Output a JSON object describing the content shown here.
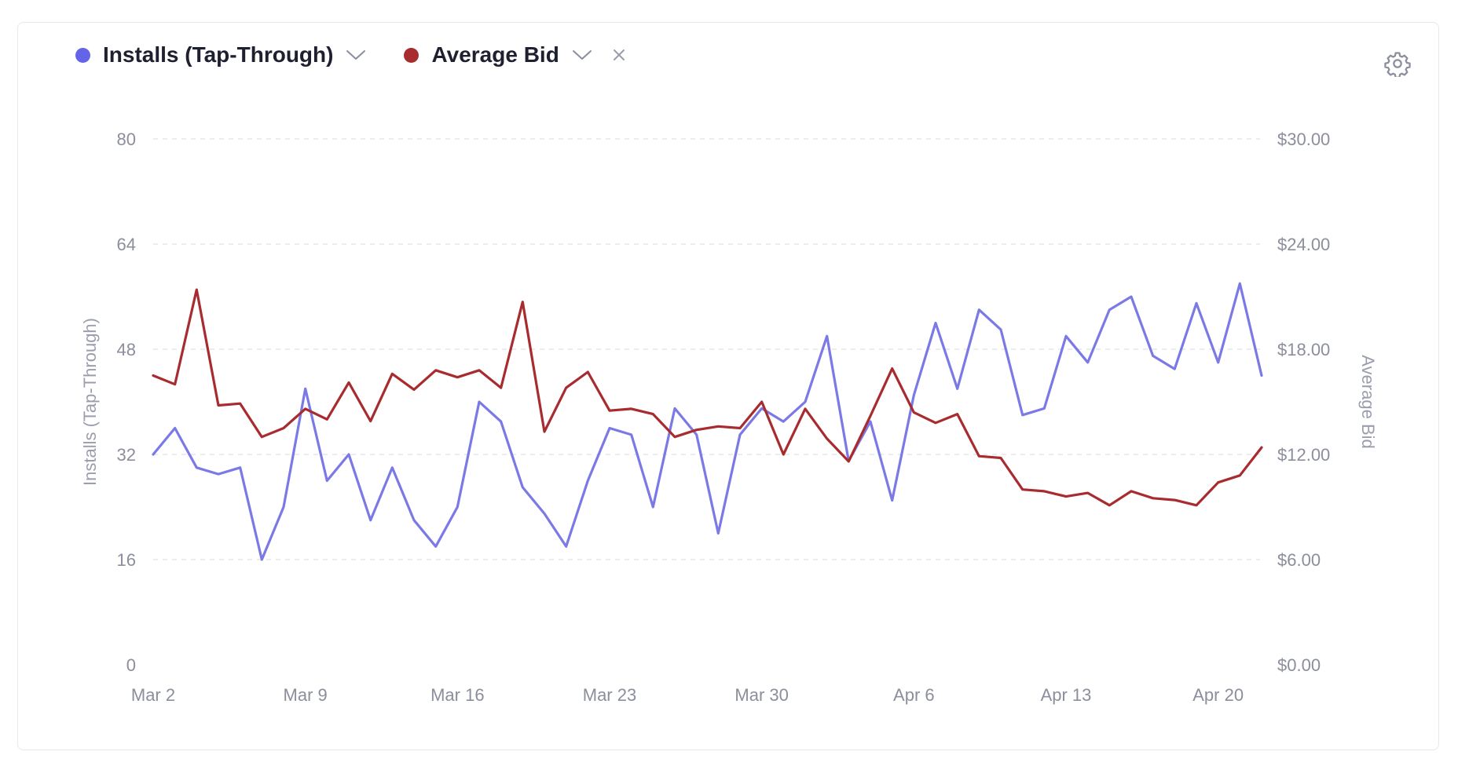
{
  "legend": {
    "series1_label": "Installs (Tap-Through)",
    "series2_label": "Average Bid"
  },
  "icons": {
    "settings": "gear-icon",
    "dropdown": "chevron-down-icon",
    "remove": "close-icon"
  },
  "colors": {
    "installs": "#7b79e6",
    "average_bid": "#a82c2f",
    "installs_dot": "#6464e8",
    "average_bid_dot": "#a82c2f"
  },
  "chart_data": {
    "type": "line",
    "x_ticks": [
      "Mar 2",
      "Mar 9",
      "Mar 16",
      "Mar 23",
      "Mar 30",
      "Apr 6",
      "Apr 13",
      "Apr 20"
    ],
    "left_ticks": [
      "0",
      "16",
      "32",
      "48",
      "64",
      "80"
    ],
    "right_ticks": [
      "$0.00",
      "$6.00",
      "$12.00",
      "$18.00",
      "$24.00",
      "$30.00"
    ],
    "ylabel": "Installs (Tap-Through)",
    "y2label": "Average Bid",
    "ylim": [
      0,
      80
    ],
    "y2lim": [
      0,
      30
    ],
    "grid": true,
    "x": [
      "Mar 2",
      "Mar 3",
      "Mar 4",
      "Mar 5",
      "Mar 6",
      "Mar 7",
      "Mar 8",
      "Mar 9",
      "Mar 10",
      "Mar 11",
      "Mar 12",
      "Mar 13",
      "Mar 14",
      "Mar 15",
      "Mar 16",
      "Mar 17",
      "Mar 18",
      "Mar 19",
      "Mar 20",
      "Mar 21",
      "Mar 22",
      "Mar 23",
      "Mar 24",
      "Mar 25",
      "Mar 26",
      "Mar 27",
      "Mar 28",
      "Mar 29",
      "Mar 30",
      "Mar 31",
      "Apr 1",
      "Apr 2",
      "Apr 3",
      "Apr 4",
      "Apr 5",
      "Apr 6",
      "Apr 7",
      "Apr 8",
      "Apr 9",
      "Apr 10",
      "Apr 11",
      "Apr 12",
      "Apr 13",
      "Apr 14",
      "Apr 15",
      "Apr 16",
      "Apr 17",
      "Apr 18",
      "Apr 19",
      "Apr 20",
      "Apr 21",
      "Apr 22"
    ],
    "series": [
      {
        "name": "Installs (Tap-Through)",
        "axis": "left",
        "values": [
          32,
          36,
          30,
          29,
          30,
          16,
          24,
          42,
          28,
          32,
          22,
          30,
          22,
          18,
          24,
          40,
          37,
          27,
          23,
          18,
          28,
          36,
          35,
          24,
          39,
          35,
          20,
          35,
          39,
          37,
          40,
          50,
          31,
          37,
          25,
          41,
          52,
          42,
          54,
          51,
          38,
          39,
          50,
          46,
          54,
          56,
          47,
          45,
          55,
          46,
          58,
          44
        ]
      },
      {
        "name": "Average Bid",
        "axis": "right",
        "values": [
          16.5,
          16.0,
          21.4,
          14.8,
          14.9,
          13.0,
          13.5,
          14.6,
          14.0,
          16.1,
          13.9,
          16.6,
          15.7,
          16.8,
          16.4,
          16.8,
          15.8,
          20.7,
          13.3,
          15.8,
          16.7,
          14.5,
          14.6,
          14.3,
          13.0,
          13.4,
          13.6,
          13.5,
          15.0,
          12.0,
          14.6,
          12.9,
          11.6,
          14.2,
          16.9,
          14.4,
          13.8,
          14.3,
          11.9,
          11.8,
          10.0,
          9.9,
          9.6,
          9.8,
          9.1,
          9.9,
          9.5,
          9.4,
          9.1,
          10.4,
          10.8,
          12.4
        ]
      }
    ]
  }
}
